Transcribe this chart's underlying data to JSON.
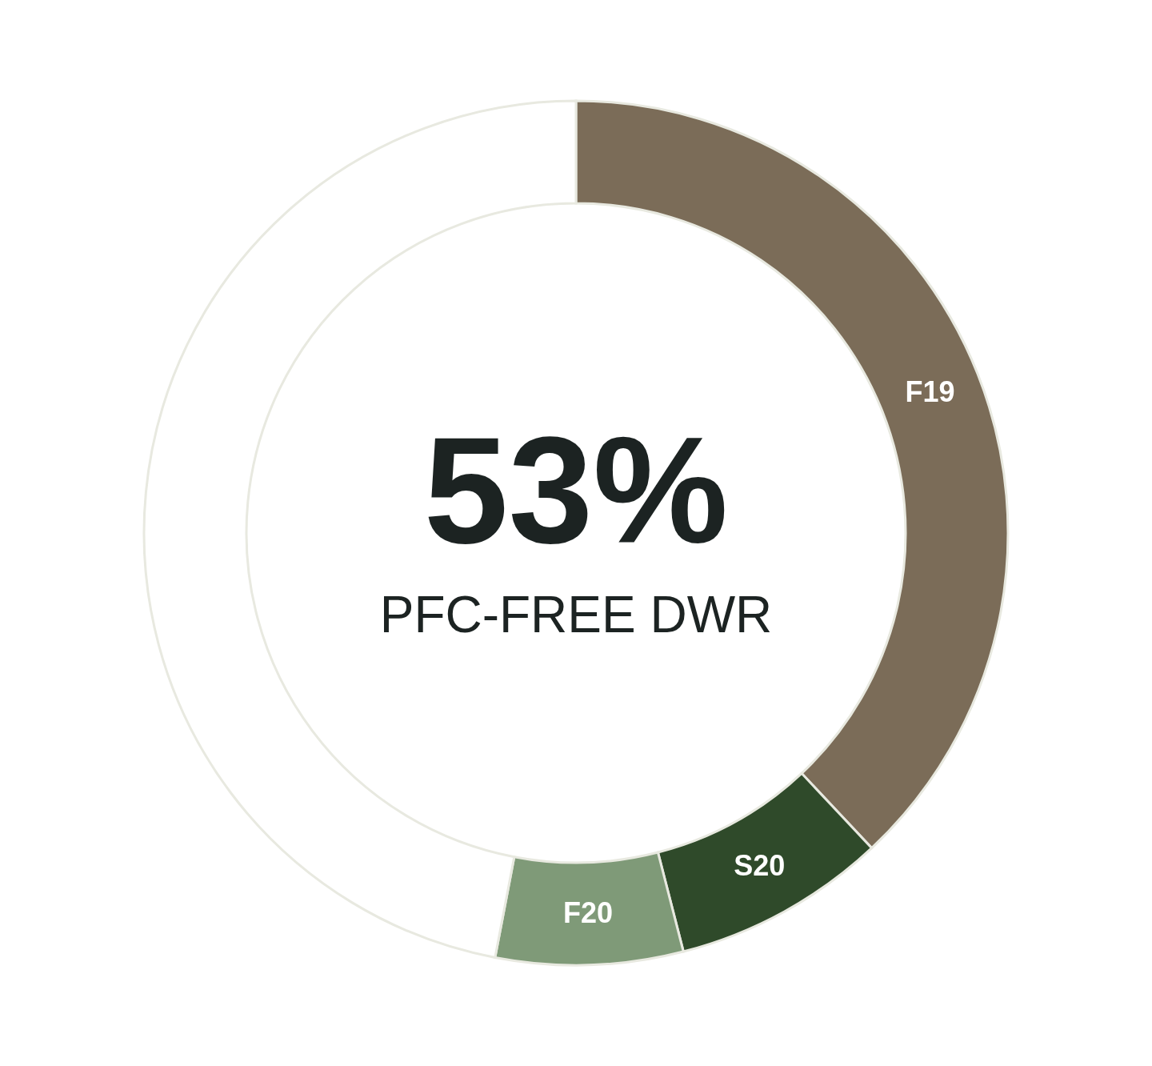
{
  "chart_data": {
    "type": "donut",
    "categories": [
      "F19",
      "S20",
      "F20",
      null
    ],
    "values": [
      38,
      8,
      7,
      47
    ],
    "colors": [
      "#7b6c58",
      "#2f4a2a",
      "#7f9a78",
      "#ffffff"
    ],
    "annotations": [
      "53%",
      "PFC-FREE DWR"
    ]
  }
}
